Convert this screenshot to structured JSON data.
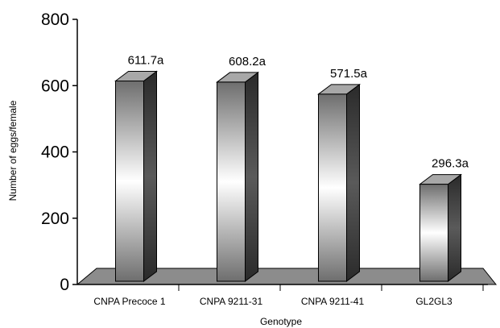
{
  "chart_data": {
    "type": "bar",
    "categories": [
      "CNPA Precoce 1",
      "CNPA 9211-31",
      "CNPA 9211-41",
      "GL2GL3"
    ],
    "values": [
      611.7,
      608.2,
      571.5,
      296.3
    ],
    "data_labels": [
      "611.7a",
      "608.2a",
      "571.5a",
      "296.3a"
    ],
    "title": "",
    "xlabel": "Genotype",
    "ylabel": "Number of eggs/female",
    "ylim": [
      0,
      800
    ],
    "yticks": [
      0,
      200,
      400,
      600,
      800
    ],
    "grid": false,
    "legend": "none",
    "style": "3d",
    "colors": {
      "bar_dark": "#6e6e6e",
      "bar_light": "#ffffff",
      "bar_side": "#3c3c3c",
      "bar_top": "#a8a8a8",
      "floor": "#8c8c8c",
      "axis": "#000000"
    }
  }
}
